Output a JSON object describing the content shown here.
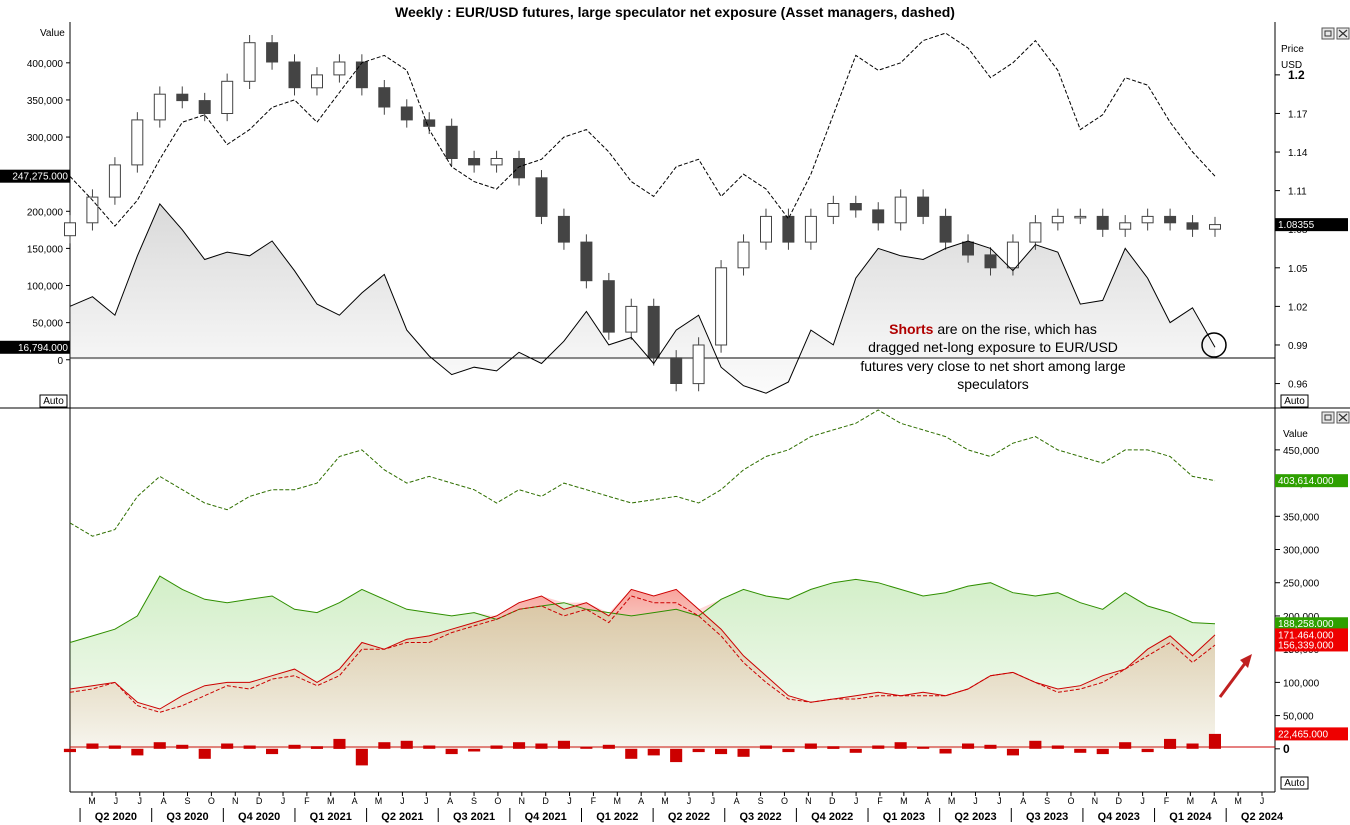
{
  "title": "Weekly : EUR/USD futures, large speculator net exposure (Asset managers, dashed)",
  "ui": {
    "auto_label": "Auto",
    "window_button_icons": [
      "restore-icon",
      "close-icon"
    ]
  },
  "annotation": {
    "strong": "Shorts",
    "line1_rest": " are on the rise, which has",
    "line2": "dragged net-long exposure to EUR/USD",
    "line3": "futures very close to net short among large",
    "line4": "speculators"
  },
  "colors": {
    "candle": "#444444",
    "net_line": "#000000",
    "long_line": "#2f8f00",
    "short_line": "#cc0000",
    "oi_line": "#2f6f00",
    "bars": "#cc0000",
    "tag_green": "#2ea000",
    "tag_red": "#ee0000",
    "tag_black": "#000000",
    "arrow": "#c02020"
  },
  "chart_data": [
    {
      "type": "line",
      "name": "upper-panel",
      "left_axis": {
        "label": "Value",
        "ticks": [
          "400,000",
          "350,000",
          "300,000",
          "250,000",
          "200,000",
          "150,000",
          "100,000",
          "50,000",
          "0"
        ],
        "ylim": [
          -65000,
          455000
        ]
      },
      "right_axis": {
        "label_line1": "Price",
        "label_line2": "USD",
        "ticks": [
          "1.2",
          "1.17",
          "1.14",
          "1.11",
          "1.08",
          "1.05",
          "1.02",
          "0.99",
          "0.96"
        ],
        "ylim": [
          0.941,
          1.2411
        ]
      },
      "value_tags": {
        "left_top": "247,275.000",
        "left_bottom": "16,794.000",
        "right_price": "1.08355"
      },
      "x": [
        0,
        4,
        8,
        12,
        16,
        20,
        24,
        28,
        32,
        36,
        40,
        44,
        48,
        52,
        56,
        60,
        64,
        68,
        72,
        76,
        80,
        84,
        88,
        92,
        96,
        100,
        104,
        108,
        112,
        116,
        120,
        124,
        128,
        132,
        136,
        140,
        144,
        148,
        152,
        156,
        160,
        164,
        168,
        172,
        176,
        180,
        184,
        188,
        192,
        196,
        200,
        204
      ],
      "net_long": [
        72000,
        85000,
        60000,
        140000,
        210000,
        175000,
        135000,
        145000,
        140000,
        160000,
        120000,
        75000,
        60000,
        90000,
        115000,
        40000,
        5000,
        -20000,
        -10000,
        -15000,
        10000,
        -5000,
        25000,
        65000,
        20000,
        30000,
        -5000,
        40000,
        60000,
        -10000,
        -35000,
        -45000,
        -30000,
        40000,
        20000,
        110000,
        150000,
        140000,
        135000,
        150000,
        160000,
        150000,
        120000,
        155000,
        145000,
        75000,
        80000,
        150000,
        110000,
        50000,
        70000,
        16794
      ],
      "asset_managers": [
        247000,
        215000,
        180000,
        215000,
        270000,
        320000,
        330000,
        290000,
        310000,
        340000,
        350000,
        320000,
        360000,
        400000,
        410000,
        390000,
        310000,
        260000,
        240000,
        230000,
        260000,
        270000,
        300000,
        310000,
        280000,
        240000,
        220000,
        260000,
        270000,
        220000,
        250000,
        230000,
        190000,
        250000,
        330000,
        410000,
        390000,
        400000,
        430000,
        440000,
        420000,
        380000,
        400000,
        430000,
        390000,
        310000,
        330000,
        380000,
        370000,
        320000,
        280000,
        247275
      ],
      "eurusd_ohlc_approx": {
        "close": [
          1.085,
          1.105,
          1.13,
          1.165,
          1.185,
          1.18,
          1.17,
          1.195,
          1.225,
          1.21,
          1.19,
          1.2,
          1.21,
          1.19,
          1.175,
          1.165,
          1.16,
          1.135,
          1.13,
          1.135,
          1.12,
          1.09,
          1.07,
          1.04,
          1.0,
          1.02,
          0.98,
          0.96,
          0.99,
          1.05,
          1.07,
          1.09,
          1.07,
          1.09,
          1.1,
          1.095,
          1.085,
          1.105,
          1.09,
          1.07,
          1.06,
          1.05,
          1.07,
          1.085,
          1.09,
          1.09,
          1.08,
          1.085,
          1.09,
          1.085,
          1.08,
          1.0836
        ]
      }
    },
    {
      "type": "area",
      "name": "lower-panel",
      "right_axis": {
        "label": "Value",
        "ticks": [
          "450,000",
          "400,000",
          "350,000",
          "300,000",
          "250,000",
          "200,000",
          "150,000",
          "100,000",
          "50,000",
          "0"
        ],
        "ylim": [
          -65000,
          510000
        ]
      },
      "value_tags": {
        "open_interest": "403,614.000",
        "longs": "188,258.000",
        "shorts": "171,464.000",
        "shorts_asset_managers": "156,339.000",
        "weekly_change": "22,465.000"
      },
      "x": [
        0,
        4,
        8,
        12,
        16,
        20,
        24,
        28,
        32,
        36,
        40,
        44,
        48,
        52,
        56,
        60,
        64,
        68,
        72,
        76,
        80,
        84,
        88,
        92,
        96,
        100,
        104,
        108,
        112,
        116,
        120,
        124,
        128,
        132,
        136,
        140,
        144,
        148,
        152,
        156,
        160,
        164,
        168,
        172,
        176,
        180,
        184,
        188,
        192,
        196,
        200,
        204
      ],
      "open_interest": [
        340000,
        320000,
        330000,
        380000,
        410000,
        390000,
        370000,
        360000,
        380000,
        390000,
        390000,
        400000,
        440000,
        450000,
        420000,
        400000,
        410000,
        400000,
        390000,
        370000,
        390000,
        380000,
        400000,
        390000,
        380000,
        370000,
        375000,
        380000,
        370000,
        390000,
        420000,
        440000,
        450000,
        470000,
        480000,
        490000,
        510000,
        490000,
        480000,
        470000,
        450000,
        440000,
        460000,
        470000,
        450000,
        440000,
        430000,
        450000,
        450000,
        440000,
        410000,
        403614
      ],
      "longs": [
        160000,
        170000,
        180000,
        200000,
        260000,
        240000,
        225000,
        220000,
        225000,
        230000,
        210000,
        205000,
        220000,
        240000,
        225000,
        210000,
        205000,
        200000,
        205000,
        195000,
        210000,
        215000,
        220000,
        210000,
        205000,
        200000,
        205000,
        210000,
        200000,
        225000,
        240000,
        230000,
        225000,
        240000,
        250000,
        255000,
        250000,
        240000,
        230000,
        235000,
        245000,
        250000,
        235000,
        230000,
        235000,
        220000,
        210000,
        235000,
        215000,
        205000,
        190000,
        188258
      ],
      "shorts": [
        90000,
        95000,
        100000,
        70000,
        60000,
        80000,
        95000,
        100000,
        100000,
        110000,
        120000,
        100000,
        120000,
        160000,
        150000,
        165000,
        170000,
        180000,
        190000,
        200000,
        220000,
        230000,
        210000,
        220000,
        200000,
        240000,
        230000,
        240000,
        210000,
        180000,
        140000,
        110000,
        80000,
        70000,
        75000,
        80000,
        85000,
        80000,
        85000,
        80000,
        90000,
        110000,
        115000,
        100000,
        90000,
        95000,
        110000,
        120000,
        150000,
        170000,
        140000,
        171464
      ],
      "shorts_asset_managers": [
        85000,
        90000,
        100000,
        65000,
        55000,
        65000,
        80000,
        95000,
        90000,
        105000,
        110000,
        95000,
        110000,
        150000,
        150000,
        160000,
        160000,
        175000,
        185000,
        195000,
        210000,
        215000,
        200000,
        210000,
        190000,
        230000,
        220000,
        220000,
        200000,
        170000,
        130000,
        100000,
        75000,
        70000,
        75000,
        75000,
        80000,
        80000,
        80000,
        80000,
        90000,
        110000,
        115000,
        100000,
        85000,
        90000,
        100000,
        120000,
        140000,
        160000,
        130000,
        156339
      ],
      "weekly_change": [
        -5000,
        8000,
        5000,
        -10000,
        10000,
        6000,
        -15000,
        8000,
        5000,
        -8000,
        6000,
        4000,
        15000,
        -25000,
        10000,
        12000,
        5000,
        -8000,
        -4000,
        5000,
        10000,
        8000,
        12000,
        3000,
        6000,
        -15000,
        -10000,
        -20000,
        -5000,
        -8000,
        -12000,
        5000,
        -5000,
        8000,
        4000,
        -6000,
        5000,
        10000,
        3000,
        -7000,
        8000,
        6000,
        -10000,
        12000,
        5000,
        -6000,
        -8000,
        10000,
        -5000,
        15000,
        8000,
        22465
      ]
    }
  ],
  "x_axis": {
    "months": [
      "M",
      "J",
      "J",
      "A",
      "S",
      "O",
      "N",
      "D",
      "J",
      "F",
      "M",
      "A",
      "M",
      "J",
      "J",
      "A",
      "S",
      "O",
      "N",
      "D",
      "J",
      "F",
      "M",
      "A",
      "M",
      "J",
      "J",
      "A",
      "S",
      "O",
      "N",
      "D",
      "J",
      "F",
      "M",
      "A",
      "M",
      "J",
      "J",
      "A",
      "S",
      "O",
      "N",
      "D",
      "J",
      "F",
      "M",
      "A",
      "M",
      "J"
    ],
    "quarters": [
      "Q2 2020",
      "Q3 2020",
      "Q4 2020",
      "Q1 2021",
      "Q2 2021",
      "Q3 2021",
      "Q4 2021",
      "Q1 2022",
      "Q2 2022",
      "Q3 2022",
      "Q4 2022",
      "Q1 2023",
      "Q2 2023",
      "Q3 2023",
      "Q4 2023",
      "Q1 2024",
      "Q2 2024"
    ]
  }
}
